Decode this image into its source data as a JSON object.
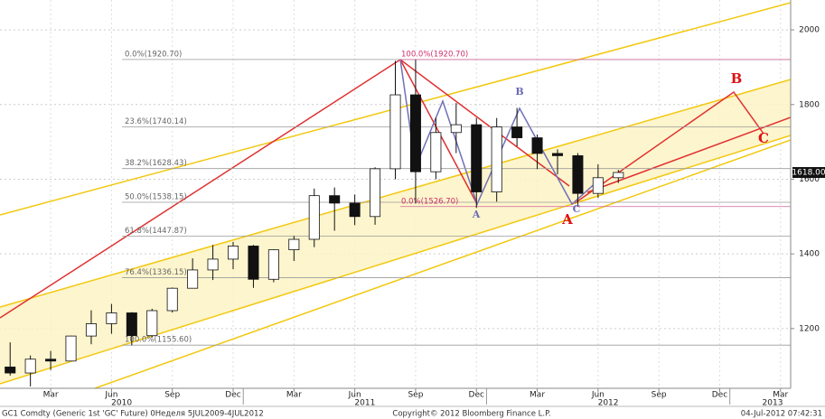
{
  "chart_data": {
    "type": "candlestick",
    "x": [
      "2010-01",
      "2010-02",
      "2010-03",
      "2010-04",
      "2010-05",
      "2010-06",
      "2010-07",
      "2010-08",
      "2010-09",
      "2010-10",
      "2010-11",
      "2010-12",
      "2011-01",
      "2011-02",
      "2011-03",
      "2011-04",
      "2011-05",
      "2011-06",
      "2011-07",
      "2011-08",
      "2011-09",
      "2011-10",
      "2011-11",
      "2011-12",
      "2012-01",
      "2012-02",
      "2012-03",
      "2012-04",
      "2012-05",
      "2012-06",
      "2012-07"
    ],
    "open": [
      1097,
      1081,
      1118,
      1113,
      1180,
      1213,
      1242,
      1181,
      1248,
      1308,
      1357,
      1386,
      1421,
      1332,
      1411,
      1439,
      1556,
      1536,
      1500,
      1628,
      1826,
      1620,
      1725,
      1746,
      1566,
      1740,
      1711,
      1669,
      1663,
      1562,
      1604
    ],
    "high": [
      1163,
      1128,
      1140,
      1181,
      1249,
      1266,
      1244,
      1253,
      1310,
      1388,
      1424,
      1432,
      1424,
      1412,
      1448,
      1575,
      1578,
      1559,
      1632,
      1917,
      1920,
      1764,
      1804,
      1764,
      1764,
      1791,
      1720,
      1680,
      1670,
      1640,
      1625
    ],
    "low": [
      1074,
      1045,
      1089,
      1113,
      1158,
      1186,
      1155,
      1176,
      1243,
      1316,
      1330,
      1359,
      1309,
      1324,
      1381,
      1418,
      1462,
      1477,
      1478,
      1600,
      1535,
      1600,
      1670,
      1523,
      1540,
      1688,
      1627,
      1613,
      1527,
      1550,
      1590
    ],
    "close": [
      1081,
      1118,
      1113,
      1180,
      1213,
      1242,
      1181,
      1248,
      1308,
      1357,
      1386,
      1421,
      1332,
      1411,
      1439,
      1556,
      1536,
      1500,
      1628,
      1826,
      1620,
      1725,
      1746,
      1566,
      1740,
      1711,
      1669,
      1663,
      1562,
      1604,
      1618
    ],
    "up_color": "#ffffff",
    "down_color": "#111111",
    "xlim": [
      "2010-01",
      "2013-04"
    ],
    "xticks": [
      {
        "value": "2010-03",
        "label": "Mar"
      },
      {
        "value": "2010-06",
        "label": "Jun"
      },
      {
        "value": "2010-09",
        "label": "Sep"
      },
      {
        "value": "2010-12",
        "label": "Dec"
      },
      {
        "value": "2011-03",
        "label": "Mar"
      },
      {
        "value": "2011-06",
        "label": "Jun"
      },
      {
        "value": "2011-09",
        "label": "Sep"
      },
      {
        "value": "2011-12",
        "label": "Dec"
      },
      {
        "value": "2012-03",
        "label": "Mar"
      },
      {
        "value": "2012-06",
        "label": "Jun"
      },
      {
        "value": "2012-09",
        "label": "Sep"
      },
      {
        "value": "2012-12",
        "label": "Dec"
      },
      {
        "value": "2013-03",
        "label": "Mar"
      }
    ],
    "years": [
      "2010",
      "2011",
      "2012",
      "2013"
    ],
    "ylim": [
      1040,
      2080
    ],
    "yticks": [
      1200,
      1400,
      1600,
      1800,
      2000
    ],
    "grid": true,
    "last_price": {
      "value": 1618,
      "label": "1618.00"
    },
    "retracements": [
      {
        "value": 1920.7,
        "label": "0.0%(1920.70)"
      },
      {
        "value": 1740.14,
        "label": "23.6%(1740.14)"
      },
      {
        "value": 1628.43,
        "label": "38.2%(1628.43)"
      },
      {
        "value": 1538.15,
        "label": "50.0%(1538.15)"
      },
      {
        "value": 1447.87,
        "label": "61.8%(1447.87)"
      },
      {
        "value": 1336.15,
        "label": "76.4%(1336.15)"
      },
      {
        "value": 1155.6,
        "label": "100.0%(1155.60)"
      }
    ],
    "extensions": [
      {
        "value": 1920.7,
        "label": "100.0%(1920.70)"
      },
      {
        "value": 1526.7,
        "label": "0.0%(1526.70)"
      }
    ],
    "pattern_labels": [
      {
        "text": "A",
        "color": "#6b6bb5"
      },
      {
        "text": "B",
        "color": "#6b6bb5"
      },
      {
        "text": "C",
        "color": "#6b6bb5"
      },
      {
        "text": "A",
        "color": "#dd1111"
      },
      {
        "text": "B",
        "color": "#dd1111"
      },
      {
        "text": "C",
        "color": "#dd1111"
      }
    ]
  },
  "footer": {
    "left": "GC1 Comdty (Generic 1st 'GC' Future) 0Неделя 5JUL2009-4JUL2012",
    "center": "Copyright© 2012 Bloomberg Finance L.P.",
    "right": "04-Jul-2012 07:42:31"
  }
}
